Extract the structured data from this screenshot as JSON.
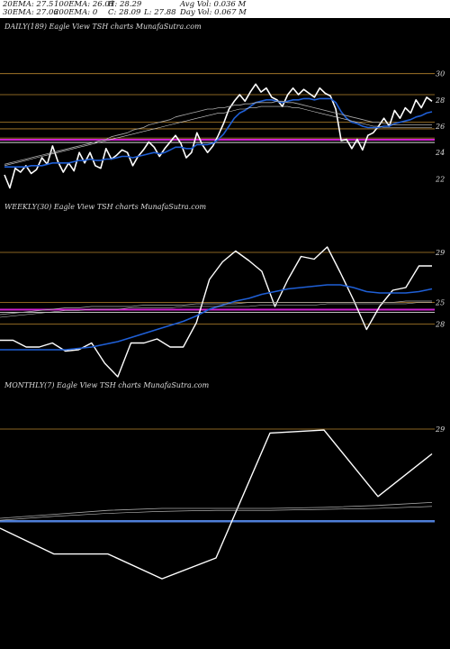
{
  "header": {
    "ema20": "20EMA: 27.5",
    "ema100": "100EMA: 26.01",
    "high": "H: 28.29",
    "avg_vol": "Avg Vol: 0.036  M",
    "ema30": "30EMA: 27.06",
    "ema200": "200EMA: 0",
    "close": "C: 28.09",
    "low": "L: 27.88",
    "day_vol": "Day Vol: 0.067 M"
  },
  "colors": {
    "background": "#000000",
    "price": "#ffffff",
    "ema_fast": "#1f5fd6",
    "ema_slow": "#aaaaaa",
    "magenta_level": "#d01fd0",
    "blue_level": "#4f7fd8",
    "grid": "#b8862e"
  },
  "chart_data": [
    {
      "type": "line",
      "title": "DAILY(189) Eagle  View  TSH charts MunafaSutra.com",
      "ylim": [
        21.2,
        30.8
      ],
      "yticks": [
        "30",
        "28",
        "26",
        "24",
        "22"
      ],
      "level_lines": [
        30,
        28.4,
        26.3,
        25.8,
        25.1
      ],
      "magenta_level": 24.9,
      "series": [
        {
          "values": [
            22.3,
            21.3,
            22.8,
            22.5,
            23.0,
            22.4,
            22.7,
            23.6,
            23.1,
            24.5,
            23.3,
            22.5,
            23.2,
            22.6,
            24.0,
            23.2,
            24.0,
            23.0,
            22.8,
            24.3,
            23.5,
            23.8,
            24.2,
            24.0,
            23.0,
            23.7,
            24.2,
            24.8,
            24.4,
            23.7,
            24.3,
            24.8,
            25.3,
            24.7,
            23.6,
            24.0,
            25.5,
            24.6,
            24.0,
            24.5,
            25.3,
            26.2,
            27.3,
            27.9,
            28.4,
            27.9,
            28.6,
            29.2,
            28.6,
            28.9,
            28.2,
            28.0,
            27.5,
            28.4,
            28.9,
            28.4,
            28.8,
            28.5,
            28.2,
            28.9,
            28.5,
            28.3,
            27.3,
            24.9,
            25.0,
            24.3,
            25.0,
            24.2,
            25.3,
            25.5,
            26.0,
            26.6,
            26.0,
            27.2,
            26.6,
            27.4,
            27.0,
            28.0,
            27.4,
            28.2,
            27.9
          ]
        },
        {
          "values": [
            22.9,
            22.9,
            22.9,
            22.9,
            22.9,
            23.0,
            23.0,
            23.0,
            23.1,
            23.2,
            23.2,
            23.2,
            23.2,
            23.3,
            23.4,
            23.4,
            23.5,
            23.4,
            23.4,
            23.5,
            23.5,
            23.6,
            23.7,
            23.7,
            23.6,
            23.7,
            23.8,
            23.9,
            24.0,
            23.9,
            24.0,
            24.2,
            24.4,
            24.4,
            24.3,
            24.3,
            24.6,
            24.6,
            24.6,
            24.7,
            25.0,
            25.4,
            26.0,
            26.6,
            27.0,
            27.2,
            27.5,
            27.8,
            27.9,
            28.0,
            28.0,
            27.9,
            27.8,
            27.9,
            28.0,
            28.0,
            28.1,
            28.1,
            28.0,
            28.1,
            28.1,
            28.1,
            27.8,
            27.1,
            26.6,
            26.3,
            26.2,
            26.0,
            25.9,
            25.9,
            25.9,
            26.0,
            26.0,
            26.2,
            26.3,
            26.4,
            26.5,
            26.7,
            26.8,
            27.0,
            27.1
          ]
        },
        {
          "values": [
            23.1,
            23.2,
            23.3,
            23.4,
            23.5,
            23.6,
            23.7,
            23.8,
            23.9,
            24.0,
            24.1,
            24.2,
            24.3,
            24.4,
            24.5,
            24.6,
            24.7,
            24.8,
            24.9,
            25.0,
            25.2,
            25.3,
            25.4,
            25.5,
            25.7,
            25.8,
            25.9,
            26.1,
            26.2,
            26.3,
            26.4,
            26.5,
            26.7,
            26.8,
            26.9,
            27.0,
            27.1,
            27.2,
            27.3,
            27.3,
            27.4,
            27.4,
            27.5,
            27.6,
            27.6,
            27.7,
            27.7,
            27.8,
            27.8,
            27.8,
            27.8,
            27.9,
            27.9,
            27.8,
            27.8,
            27.7,
            27.6,
            27.5,
            27.4,
            27.3,
            27.2,
            27.1,
            27.0,
            26.9,
            26.8,
            26.7,
            26.6,
            26.5,
            26.4,
            26.3,
            26.3,
            26.2,
            26.2,
            26.1,
            26.1,
            26.1,
            26.1,
            26.1,
            26.1,
            26.1,
            26.1
          ]
        },
        {
          "values": [
            23.0,
            23.1,
            23.2,
            23.3,
            23.4,
            23.5,
            23.6,
            23.7,
            23.8,
            23.9,
            24.0,
            24.1,
            24.2,
            24.3,
            24.4,
            24.5,
            24.6,
            24.7,
            24.8,
            24.9,
            25.0,
            25.1,
            25.2,
            25.3,
            25.4,
            25.5,
            25.6,
            25.7,
            25.8,
            25.9,
            26.0,
            26.1,
            26.2,
            26.3,
            26.4,
            26.5,
            26.6,
            26.7,
            26.8,
            26.9,
            27.0,
            27.0,
            27.1,
            27.2,
            27.3,
            27.3,
            27.4,
            27.4,
            27.5,
            27.5,
            27.5,
            27.5,
            27.5,
            27.5,
            27.4,
            27.4,
            27.3,
            27.2,
            27.1,
            27.0,
            26.9,
            26.8,
            26.7,
            26.6,
            26.5,
            26.4,
            26.3,
            26.2,
            26.1,
            26.0,
            26.0,
            25.9,
            25.9,
            25.9,
            25.9,
            25.9,
            25.9,
            25.9,
            25.9,
            25.9,
            25.9
          ]
        }
      ]
    },
    {
      "type": "line",
      "title": "WEEKLY(30) Eagle  View  TSH charts MunafaSutra.com",
      "ylim": [
        20,
        31
      ],
      "yticks": [
        "29",
        "25",
        "28"
      ],
      "level_lines": [
        29,
        25.3,
        23.7
      ],
      "magenta_level": 24.7,
      "series": [
        {
          "values": [
            22.5,
            22.5,
            22.0,
            22.0,
            22.3,
            21.7,
            21.8,
            22.3,
            20.8,
            19.8,
            22.3,
            22.3,
            22.6,
            22.0,
            22.0,
            23.8,
            27.0,
            28.3,
            29.1,
            28.4,
            27.6,
            25.0,
            27.0,
            28.7,
            28.5,
            29.4,
            27.5,
            25.5,
            23.3,
            25.0,
            26.2,
            26.4,
            28.0,
            28.0
          ]
        },
        {
          "values": [
            21.8,
            21.8,
            21.8,
            21.8,
            21.8,
            21.8,
            21.9,
            22.0,
            22.2,
            22.4,
            22.7,
            23.0,
            23.3,
            23.6,
            23.9,
            24.3,
            24.8,
            25.1,
            25.4,
            25.6,
            25.9,
            26.1,
            26.3,
            26.4,
            26.5,
            26.6,
            26.6,
            26.4,
            26.1,
            26.0,
            26.0,
            26.0,
            26.1,
            26.3
          ]
        },
        {
          "values": [
            24.4,
            24.5,
            24.6,
            24.7,
            24.8,
            24.9,
            24.9,
            25.0,
            25.0,
            25.0,
            25.0,
            25.1,
            25.1,
            25.1,
            25.1,
            25.2,
            25.2,
            25.2,
            25.2,
            25.3,
            25.3,
            25.3,
            25.3,
            25.3,
            25.3,
            25.3,
            25.3,
            25.3,
            25.3,
            25.3,
            25.3,
            25.4,
            25.4,
            25.4
          ]
        },
        {
          "values": [
            24.2,
            24.3,
            24.4,
            24.5,
            24.6,
            24.7,
            24.7,
            24.8,
            24.8,
            24.8,
            24.9,
            24.9,
            24.9,
            24.9,
            25.0,
            25.0,
            25.0,
            25.0,
            25.0,
            25.0,
            25.1,
            25.1,
            25.1,
            25.1,
            25.1,
            25.2,
            25.2,
            25.2,
            25.2,
            25.2,
            25.2,
            25.2,
            25.3,
            25.3
          ]
        }
      ]
    },
    {
      "type": "line",
      "title": "MONTHLY(7) Eagle  View  TSH charts MunafaSutra.com",
      "ylim": [
        10,
        30
      ],
      "yticks": [
        "29"
      ],
      "level_lines": [
        29
      ],
      "blue_level": 19.7,
      "series": [
        {
          "values": [
            19.0,
            16.4,
            16.4,
            13.9,
            16.0,
            28.6,
            28.9,
            22.2,
            26.5
          ]
        },
        {
          "values": [
            20.0,
            20.4,
            20.8,
            21.0,
            21.0,
            21.0,
            21.1,
            21.3,
            21.6
          ]
        },
        {
          "values": [
            19.8,
            20.2,
            20.5,
            20.7,
            20.8,
            20.8,
            20.9,
            21.0,
            21.2
          ]
        }
      ]
    }
  ]
}
